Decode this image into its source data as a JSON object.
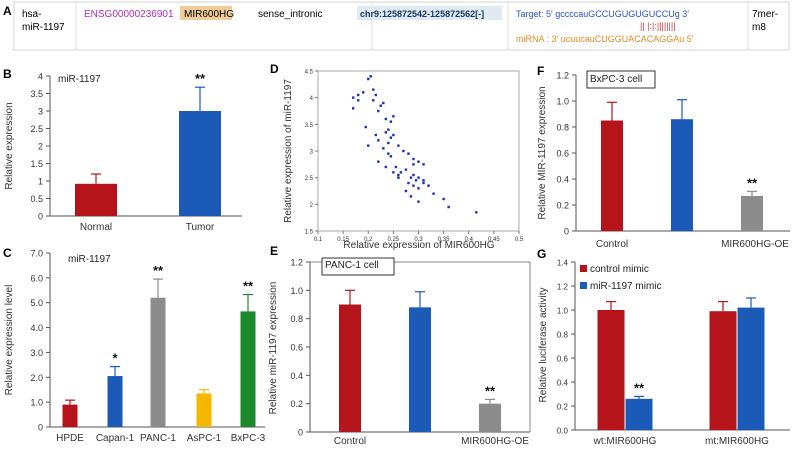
{
  "panel_a": {
    "letter": "A",
    "mirna_line1": "hsa-",
    "mirna_line2": "miR-1197",
    "ensembl_id": "ENSG00000236901",
    "gene": "MIR600HG",
    "relationship": "sense_intronic",
    "locus": "chr9:125872542-125872562[-]",
    "target_seq": "Target: 5' gccccauGCCUGUGUGUCCUg 3'",
    "pairing": "|| |:|:||||||||",
    "mirna_seq": "miRNA : 3' ucuucauCUGGUACACAGGAu 5'",
    "site_type_line1": "7mer-",
    "site_type_line2": "m8",
    "colors": {
      "ensembl": "#b02cc0",
      "gene_bg": "#f1cc98",
      "locus_bg": "#dfeaf3",
      "target": "#2a4fd8",
      "mirna": "#e08a1e",
      "pairing": "#d23b3b"
    }
  },
  "chart_data": [
    {
      "panel": "B",
      "type": "bar",
      "title": "miR-1197",
      "xlabel": "",
      "ylabel": "Relative  expression",
      "categories": [
        "Normal",
        "Tumor"
      ],
      "values": [
        0.92,
        3.0
      ],
      "errors": [
        0.28,
        0.68
      ],
      "colors": [
        "#b4141a",
        "#1c5ab8"
      ],
      "significance": [
        "",
        "**"
      ],
      "ylim": [
        0,
        4
      ],
      "yticks": [
        "0",
        "0.5",
        "1",
        "1.5",
        "2",
        "2.5",
        "3",
        "3.5",
        "4"
      ]
    },
    {
      "panel": "C",
      "type": "bar",
      "title": "miR-1197",
      "xlabel": "",
      "ylabel": "Relative expression level",
      "categories": [
        "HPDE",
        "Capan-1",
        "PANC-1",
        "AsPC-1",
        "BxPC-3"
      ],
      "values": [
        0.9,
        2.05,
        5.2,
        1.35,
        4.65
      ],
      "errors": [
        0.18,
        0.38,
        0.75,
        0.15,
        0.68
      ],
      "colors": [
        "#b4141a",
        "#1c5ab8",
        "#8c8c8c",
        "#f5b800",
        "#1c8a2c"
      ],
      "significance": [
        "",
        "*",
        "**",
        "",
        "**"
      ],
      "ylim": [
        0,
        7
      ],
      "yticks": [
        "0",
        "1.0",
        "2.0",
        "3.0",
        "4.0",
        "5.0",
        "6.0",
        "7.0"
      ]
    },
    {
      "panel": "D",
      "type": "scatter",
      "title": "",
      "xlabel": "Relative expression of MIR600HG",
      "ylabel": "Relative expression of miR-1197",
      "xlim": [
        0.1,
        0.5
      ],
      "ylim": [
        1.5,
        4.5
      ],
      "xticks": [
        "0.1",
        "0.15",
        "0.2",
        "0.25",
        "0.3",
        "0.35",
        "0.4",
        "0.45",
        "0.5"
      ],
      "yticks": [
        "1.5",
        "2",
        "2.5",
        "3",
        "3.5",
        "4",
        "4.5"
      ],
      "x": [
        0.17,
        0.18,
        0.19,
        0.2,
        0.205,
        0.21,
        0.21,
        0.215,
        0.22,
        0.225,
        0.23,
        0.235,
        0.24,
        0.245,
        0.25,
        0.17,
        0.18,
        0.195,
        0.215,
        0.2,
        0.22,
        0.235,
        0.23,
        0.24,
        0.245,
        0.25,
        0.26,
        0.27,
        0.28,
        0.29,
        0.3,
        0.31,
        0.245,
        0.255,
        0.265,
        0.275,
        0.29,
        0.3,
        0.31,
        0.22,
        0.235,
        0.25,
        0.26,
        0.28,
        0.29,
        0.3,
        0.33,
        0.35,
        0.36,
        0.285,
        0.295,
        0.31,
        0.32,
        0.24,
        0.26,
        0.275,
        0.285,
        0.3,
        0.29,
        0.415
      ],
      "y": [
        4.0,
        4.05,
        4.1,
        4.35,
        4.4,
        4.15,
        3.95,
        4.05,
        3.75,
        3.85,
        3.9,
        3.6,
        3.4,
        3.55,
        3.65,
        3.8,
        3.95,
        3.45,
        3.3,
        3.1,
        3.2,
        3.35,
        3.05,
        3.15,
        3.25,
        3.3,
        3.1,
        3.0,
        2.95,
        2.85,
        2.8,
        2.75,
        2.9,
        2.7,
        2.6,
        2.65,
        2.55,
        2.5,
        2.45,
        2.8,
        2.7,
        2.6,
        2.5,
        2.4,
        2.35,
        2.3,
        2.2,
        2.1,
        1.95,
        2.5,
        2.45,
        2.4,
        2.35,
        2.95,
        2.55,
        2.25,
        2.15,
        2.05,
        2.75,
        1.85
      ],
      "color": "#1c2fb0"
    },
    {
      "panel": "E",
      "type": "bar",
      "title": "PANC-1 cell",
      "xlabel": "",
      "ylabel": "Relative  miR-1197 expression",
      "categories": [
        "Control",
        "",
        "MIR600HG-OE"
      ],
      "values": [
        0.9,
        0.88,
        0.2
      ],
      "errors": [
        0.1,
        0.11,
        0.03
      ],
      "colors": [
        "#b4141a",
        "#1c5ab8",
        "#8c8c8c"
      ],
      "significance": [
        "",
        "",
        "**"
      ],
      "ylim": [
        0,
        1.2
      ],
      "yticks": [
        "0",
        "0.2",
        "0.4",
        "0.6",
        "0.8",
        "1.0",
        "1.2"
      ]
    },
    {
      "panel": "F",
      "type": "bar",
      "title": "BxPC-3 cell",
      "xlabel": "",
      "ylabel": "Relative  MIR-1197 expression",
      "categories": [
        "Control",
        "",
        "MIR600HG-OE"
      ],
      "values": [
        0.85,
        0.86,
        0.27
      ],
      "errors": [
        0.14,
        0.15,
        0.035
      ],
      "colors": [
        "#b4141a",
        "#1c5ab8",
        "#8c8c8c"
      ],
      "significance": [
        "",
        "",
        "**"
      ],
      "ylim": [
        0,
        1.2
      ],
      "yticks": [
        "0",
        "0.2",
        "0.4",
        "0.6",
        "0.8",
        "1.0",
        "1.2"
      ]
    },
    {
      "panel": "G",
      "type": "bar",
      "title": "",
      "xlabel": "",
      "ylabel": "Relative luciferase activity",
      "categories": [
        "wt:MIR600HG",
        "mt:MIR600HG"
      ],
      "series": [
        {
          "name": "control mimic",
          "color": "#b4141a",
          "values": [
            1.0,
            0.99
          ],
          "errors": [
            0.07,
            0.08
          ],
          "significance": [
            "",
            ""
          ]
        },
        {
          "name": "miR-1197 mimic",
          "color": "#1c5ab8",
          "values": [
            0.26,
            1.02
          ],
          "errors": [
            0.02,
            0.08
          ],
          "significance": [
            "**",
            ""
          ]
        }
      ],
      "ylim": [
        0,
        1.4
      ],
      "yticks": [
        "0.0",
        "0.2",
        "0.4",
        "0.6",
        "0.8",
        "1.0",
        "1.2",
        "1.4"
      ]
    }
  ]
}
